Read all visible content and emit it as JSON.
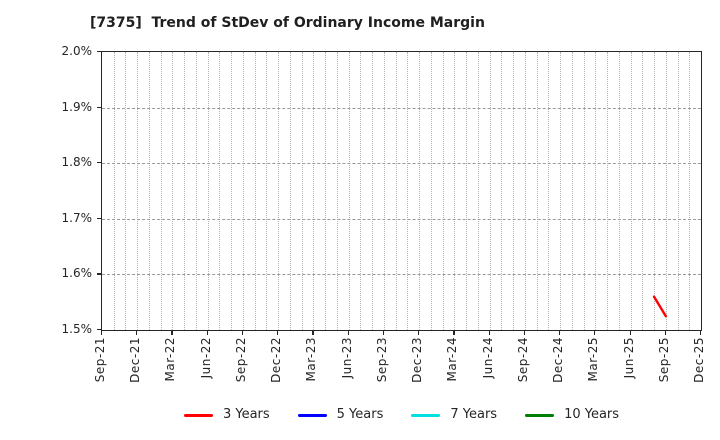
{
  "chart_data": {
    "type": "line",
    "title": "[7375]  Trend of StDev of Ordinary Income Margin",
    "x_axis": {
      "start": "Sep-21",
      "end": "Dec-25",
      "tick_labels": [
        "Sep-21",
        "Dec-21",
        "Mar-22",
        "Jun-22",
        "Sep-22",
        "Dec-22",
        "Mar-23",
        "Jun-23",
        "Sep-23",
        "Dec-23",
        "Mar-24",
        "Jun-24",
        "Sep-24",
        "Dec-24",
        "Mar-25",
        "Jun-25",
        "Sep-25",
        "Dec-25"
      ],
      "minor_grid": "monthly"
    },
    "y_axis": {
      "min": 1.5,
      "max": 2.0,
      "step": 0.1,
      "unit": "%",
      "tick_labels": [
        "1.5%",
        "1.6%",
        "1.7%",
        "1.8%",
        "1.9%",
        "2.0%"
      ]
    },
    "grid": true,
    "legend_position": "bottom",
    "series": [
      {
        "name": "3 Years",
        "color": "#ff0000",
        "points": [
          {
            "x": "Aug-25",
            "y": 1.56
          },
          {
            "x": "Sep-25",
            "y": 1.525
          }
        ]
      },
      {
        "name": "5 Years",
        "color": "#0000ff",
        "points": []
      },
      {
        "name": "7 Years",
        "color": "#00e0e0",
        "points": []
      },
      {
        "name": "10 Years",
        "color": "#007f00",
        "points": []
      }
    ]
  },
  "colors": {
    "axis_border": "#262626",
    "grid_horizontal": "#9a9a9a",
    "grid_vertical": "#b3b3b3",
    "text": "#262626",
    "background": "#ffffff"
  }
}
